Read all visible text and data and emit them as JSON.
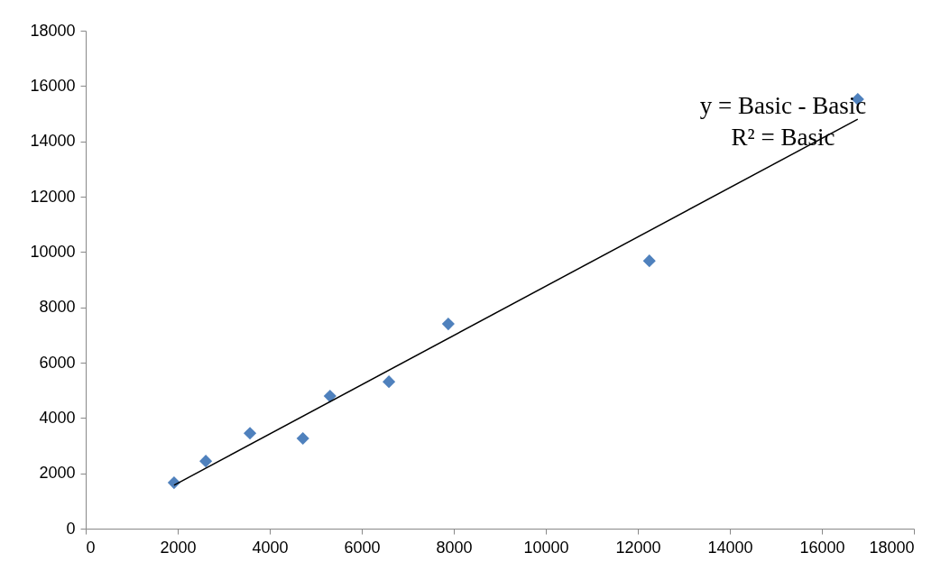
{
  "chart_data": {
    "type": "scatter",
    "marker": "diamond",
    "grid": false,
    "xlim": [
      0,
      18000
    ],
    "xticks": [
      0,
      2000,
      4000,
      6000,
      8000,
      10000,
      12000,
      14000,
      16000,
      18000
    ],
    "ylim": [
      0,
      18000
    ],
    "yticks": [
      0,
      2000,
      4000,
      6000,
      8000,
      10000,
      12000,
      14000,
      16000,
      18000
    ],
    "annotations": [
      "y = Basic - Basic",
      "R² = Basic"
    ],
    "series": [
      {
        "color": "#4f81bd",
        "x": [
          1920,
          2610,
          3570,
          4720,
          5310,
          6590,
          7880,
          12250,
          16780
        ],
        "values": [
          1660,
          2440,
          3450,
          3260,
          4790,
          5310,
          7400,
          9680,
          15520
        ]
      },
      {
        "type": "line",
        "marker": "none",
        "color": "#000000",
        "x": [
          1920,
          16780
        ],
        "values": [
          1570,
          14800
        ]
      }
    ]
  }
}
